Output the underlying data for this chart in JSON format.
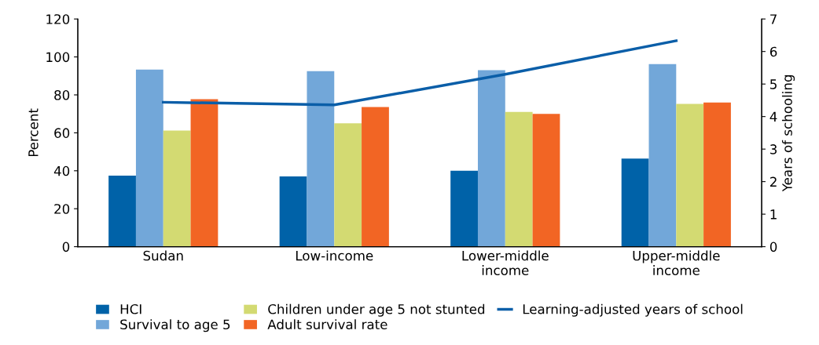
{
  "chart_data": {
    "type": "bar",
    "ylabel": "Percent",
    "y2label": "Years of schooling",
    "categories": [
      "Sudan",
      "Low-income",
      "Lower-middle\nincome",
      "Upper-middle\nincome"
    ],
    "series": [
      {
        "name": "HCI",
        "color": "#0062a8",
        "values": [
          37.4,
          37,
          40,
          46.4
        ]
      },
      {
        "name": "Survival to age 5",
        "color": "#72a7d9",
        "values": [
          93.3,
          92.5,
          93,
          96.2
        ]
      },
      {
        "name": "Children under age 5 not stunted",
        "color": "#d3da72",
        "values": [
          61.2,
          65,
          71,
          75.2
        ]
      },
      {
        "name": "Adult survival rate",
        "color": "#f26524",
        "values": [
          77.7,
          73.6,
          70,
          76
        ]
      },
      {
        "name": "Learning-adjusted years of school",
        "type": "line",
        "axis": "y2",
        "color": "#0a5ea8",
        "values": [
          4.44,
          4.36,
          5.3,
          6.33
        ]
      }
    ],
    "ylim": [
      0,
      120
    ],
    "yticks": [
      0,
      20,
      40,
      60,
      80,
      100,
      120
    ],
    "y2lim": [
      0,
      7
    ],
    "y2ticks": [
      0,
      1,
      2,
      3,
      4,
      5,
      6,
      7
    ],
    "grid": false,
    "legend": "bottom"
  }
}
